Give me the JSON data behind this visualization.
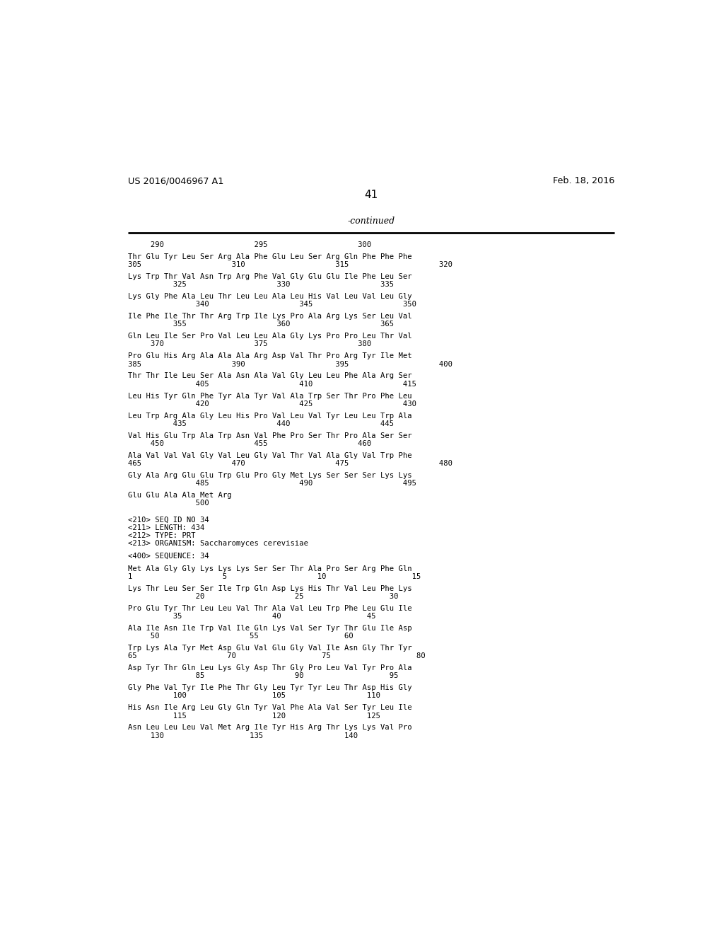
{
  "header_left": "US 2016/0046967 A1",
  "header_right": "Feb. 18, 2016",
  "page_number": "41",
  "continued_label": "-continued",
  "background_color": "#ffffff",
  "text_color": "#000000",
  "lines": [
    {
      "type": "ruler",
      "text": "     290                    295                    300"
    },
    {
      "type": "blank"
    },
    {
      "type": "seq",
      "text": "Thr Glu Tyr Leu Ser Arg Ala Phe Glu Leu Ser Arg Gln Phe Phe Phe"
    },
    {
      "type": "num",
      "text": "305                    310                    315                    320"
    },
    {
      "type": "blank"
    },
    {
      "type": "seq",
      "text": "Lys Trp Thr Val Asn Trp Arg Phe Val Gly Glu Glu Ile Phe Leu Ser"
    },
    {
      "type": "num",
      "text": "          325                    330                    335"
    },
    {
      "type": "blank"
    },
    {
      "type": "seq",
      "text": "Lys Gly Phe Ala Leu Thr Leu Leu Ala Leu His Val Leu Val Leu Gly"
    },
    {
      "type": "num",
      "text": "               340                    345                    350"
    },
    {
      "type": "blank"
    },
    {
      "type": "seq",
      "text": "Ile Phe Ile Thr Thr Arg Trp Ile Lys Pro Ala Arg Lys Ser Leu Val"
    },
    {
      "type": "num",
      "text": "          355                    360                    365"
    },
    {
      "type": "blank"
    },
    {
      "type": "seq",
      "text": "Gln Leu Ile Ser Pro Val Leu Leu Ala Gly Lys Pro Pro Leu Thr Val"
    },
    {
      "type": "num",
      "text": "     370                    375                    380"
    },
    {
      "type": "blank"
    },
    {
      "type": "seq",
      "text": "Pro Glu His Arg Ala Ala Ala Arg Asp Val Thr Pro Arg Tyr Ile Met"
    },
    {
      "type": "num",
      "text": "385                    390                    395                    400"
    },
    {
      "type": "blank"
    },
    {
      "type": "seq",
      "text": "Thr Thr Ile Leu Ser Ala Asn Ala Val Gly Leu Leu Phe Ala Arg Ser"
    },
    {
      "type": "num",
      "text": "               405                    410                    415"
    },
    {
      "type": "blank"
    },
    {
      "type": "seq",
      "text": "Leu His Tyr Gln Phe Tyr Ala Tyr Val Ala Trp Ser Thr Pro Phe Leu"
    },
    {
      "type": "num",
      "text": "               420                    425                    430"
    },
    {
      "type": "blank"
    },
    {
      "type": "seq",
      "text": "Leu Trp Arg Ala Gly Leu His Pro Val Leu Val Tyr Leu Leu Trp Ala"
    },
    {
      "type": "num",
      "text": "          435                    440                    445"
    },
    {
      "type": "blank"
    },
    {
      "type": "seq",
      "text": "Val His Glu Trp Ala Trp Asn Val Phe Pro Ser Thr Pro Ala Ser Ser"
    },
    {
      "type": "num",
      "text": "     450                    455                    460"
    },
    {
      "type": "blank"
    },
    {
      "type": "seq",
      "text": "Ala Val Val Val Gly Val Leu Gly Val Thr Val Ala Gly Val Trp Phe"
    },
    {
      "type": "num",
      "text": "465                    470                    475                    480"
    },
    {
      "type": "blank"
    },
    {
      "type": "seq",
      "text": "Gly Ala Arg Glu Glu Trp Glu Pro Gly Met Lys Ser Ser Ser Lys Lys"
    },
    {
      "type": "num",
      "text": "               485                    490                    495"
    },
    {
      "type": "blank"
    },
    {
      "type": "seq",
      "text": "Glu Glu Ala Ala Met Arg"
    },
    {
      "type": "num",
      "text": "               500"
    },
    {
      "type": "blank"
    },
    {
      "type": "blank"
    },
    {
      "type": "meta",
      "text": "<210> SEQ ID NO 34"
    },
    {
      "type": "meta",
      "text": "<211> LENGTH: 434"
    },
    {
      "type": "meta",
      "text": "<212> TYPE: PRT"
    },
    {
      "type": "meta",
      "text": "<213> ORGANISM: Saccharomyces cerevisiae"
    },
    {
      "type": "blank"
    },
    {
      "type": "meta",
      "text": "<400> SEQUENCE: 34"
    },
    {
      "type": "blank"
    },
    {
      "type": "seq",
      "text": "Met Ala Gly Gly Lys Lys Lys Ser Ser Thr Ala Pro Ser Arg Phe Gln"
    },
    {
      "type": "num",
      "text": "1                    5                    10                   15"
    },
    {
      "type": "blank"
    },
    {
      "type": "seq",
      "text": "Lys Thr Leu Ser Ser Ile Trp Gln Asp Lys His Thr Val Leu Phe Lys"
    },
    {
      "type": "num",
      "text": "               20                    25                   30"
    },
    {
      "type": "blank"
    },
    {
      "type": "seq",
      "text": "Pro Glu Tyr Thr Leu Leu Val Thr Ala Val Leu Trp Phe Leu Glu Ile"
    },
    {
      "type": "num",
      "text": "          35                    40                   45"
    },
    {
      "type": "blank"
    },
    {
      "type": "seq",
      "text": "Ala Ile Asn Ile Trp Val Ile Gln Lys Val Ser Tyr Thr Glu Ile Asp"
    },
    {
      "type": "num",
      "text": "     50                    55                   60"
    },
    {
      "type": "blank"
    },
    {
      "type": "seq",
      "text": "Trp Lys Ala Tyr Met Asp Glu Val Glu Gly Val Ile Asn Gly Thr Tyr"
    },
    {
      "type": "num",
      "text": "65                    70                   75                   80"
    },
    {
      "type": "blank"
    },
    {
      "type": "seq",
      "text": "Asp Tyr Thr Gln Leu Lys Gly Asp Thr Gly Pro Leu Val Tyr Pro Ala"
    },
    {
      "type": "num",
      "text": "               85                    90                   95"
    },
    {
      "type": "blank"
    },
    {
      "type": "seq",
      "text": "Gly Phe Val Tyr Ile Phe Thr Gly Leu Tyr Tyr Leu Thr Asp His Gly"
    },
    {
      "type": "num",
      "text": "          100                   105                  110"
    },
    {
      "type": "blank"
    },
    {
      "type": "seq",
      "text": "His Asn Ile Arg Leu Gly Gln Tyr Val Phe Ala Val Ser Tyr Leu Ile"
    },
    {
      "type": "num",
      "text": "          115                   120                  125"
    },
    {
      "type": "blank"
    },
    {
      "type": "seq",
      "text": "Asn Leu Leu Leu Val Met Arg Ile Tyr His Arg Thr Lys Lys Val Pro"
    },
    {
      "type": "num",
      "text": "     130                   135                  140"
    }
  ]
}
